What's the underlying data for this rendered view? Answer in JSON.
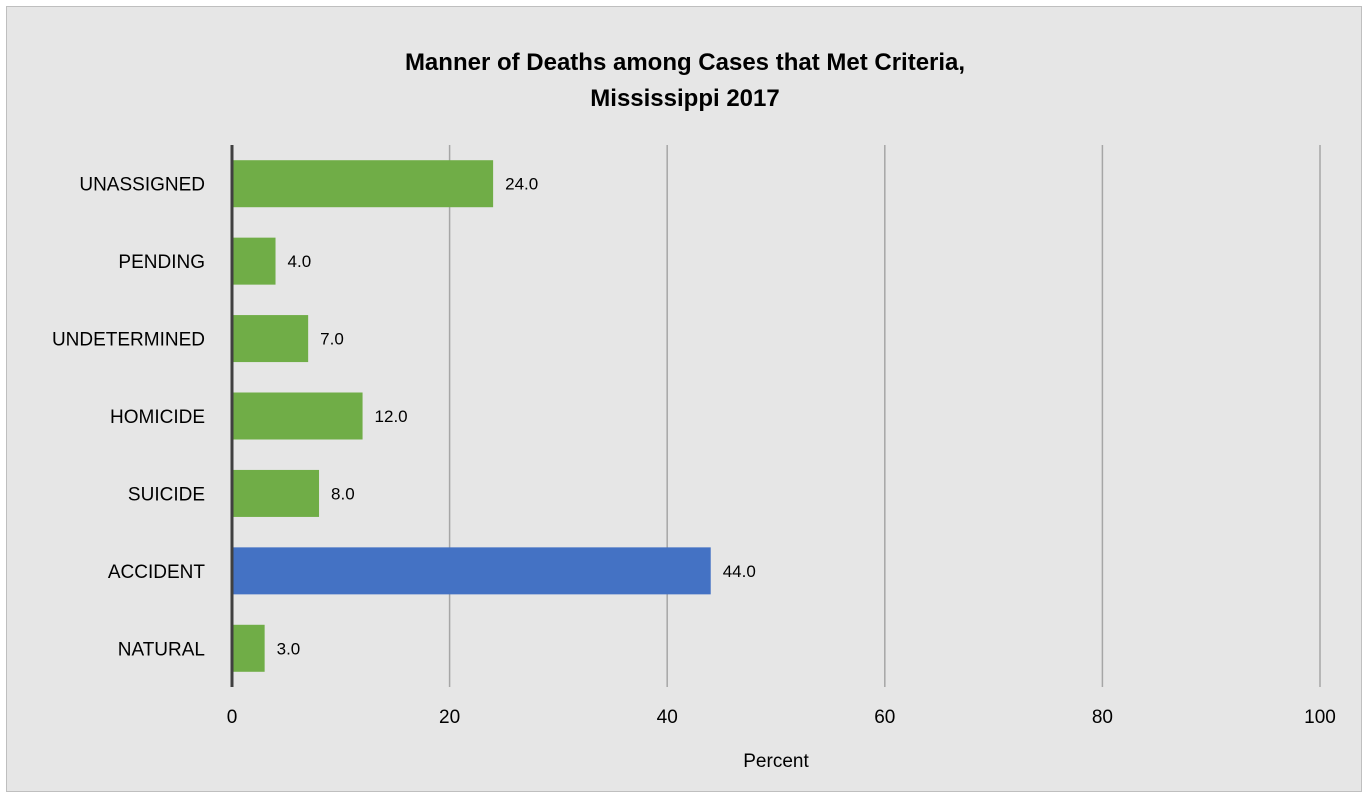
{
  "chart_data": {
    "type": "bar",
    "orientation": "horizontal",
    "title_lines": [
      "Manner of Deaths among Cases that Met Criteria,",
      "Mississippi 2017"
    ],
    "xlabel": "Percent",
    "ylabel": "",
    "categories": [
      "UNASSIGNED",
      "PENDING",
      "UNDETERMINED",
      "HOMICIDE",
      "SUICIDE",
      "ACCIDENT",
      "NATURAL"
    ],
    "values": [
      24.0,
      4.0,
      7.0,
      12.0,
      8.0,
      44.0,
      3.0
    ],
    "data_labels": [
      "24.0",
      "4.0",
      "7.0",
      "12.0",
      "8.0",
      "44.0",
      "3.0"
    ],
    "bar_colors": [
      "#70ad47",
      "#70ad47",
      "#70ad47",
      "#70ad47",
      "#70ad47",
      "#4472c4",
      "#70ad47"
    ],
    "xlim": [
      0,
      100
    ],
    "xticks": [
      0,
      20,
      40,
      60,
      80,
      100
    ],
    "grid": "vertical gridlines",
    "legend": "none"
  }
}
